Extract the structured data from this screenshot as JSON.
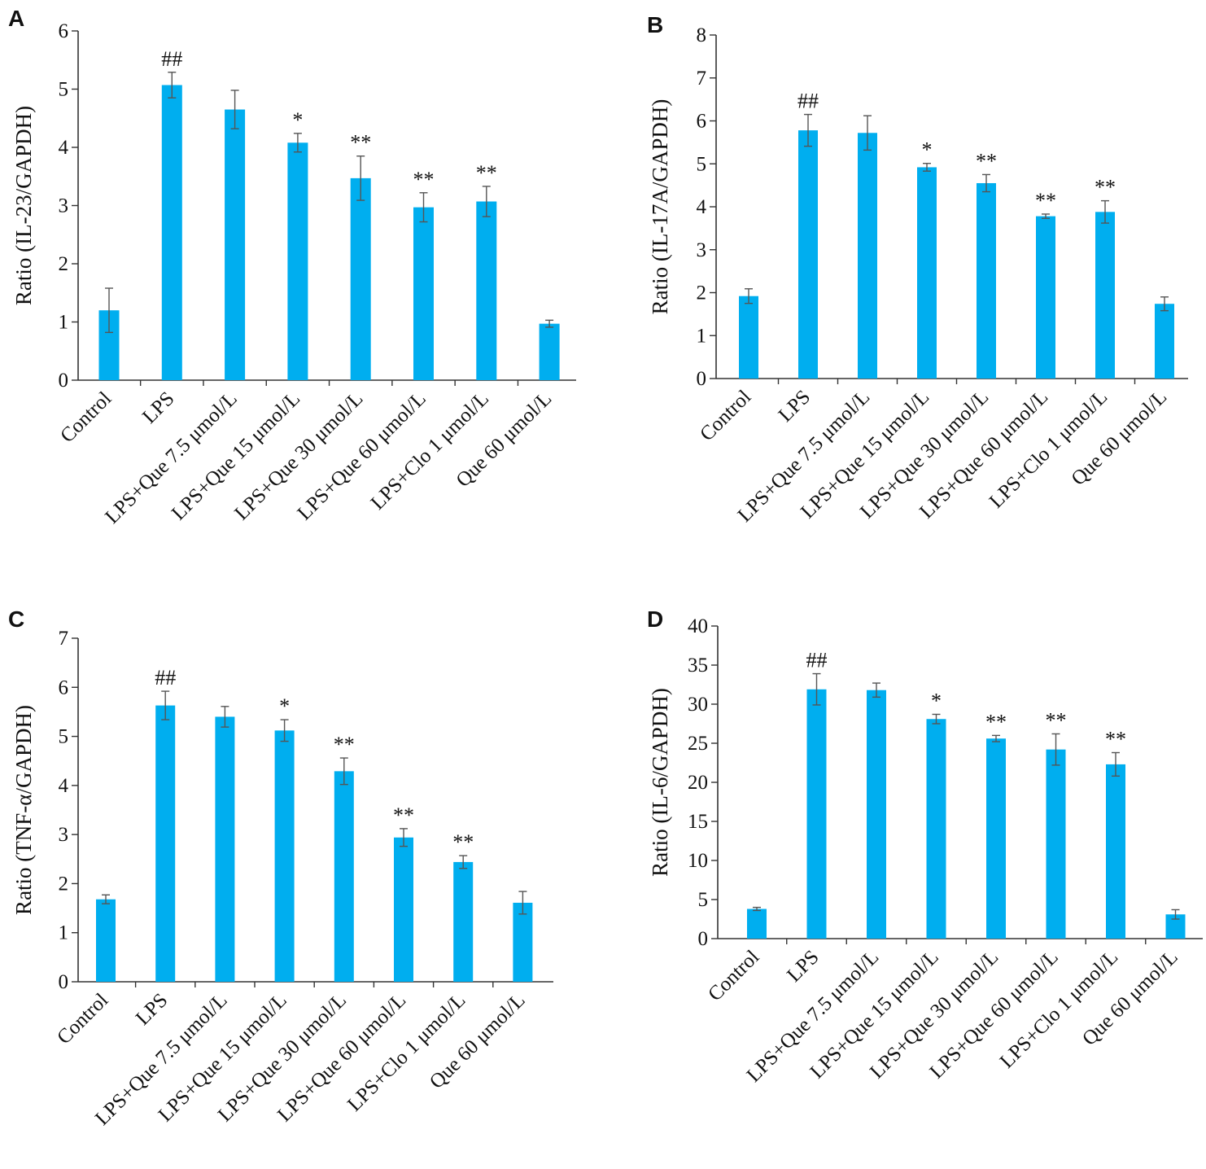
{
  "colors": {
    "bar": "#00AEEF",
    "axis": "#333333",
    "error_bar": "#555555",
    "text": "#111111"
  },
  "chart_data": [
    {
      "type": "bar",
      "panel": "A",
      "ylabel": "Ratio (IL-23/GAPDH)",
      "ylim": [
        0,
        6
      ],
      "yticks": [
        0,
        1,
        2,
        3,
        4,
        5,
        6
      ],
      "categories": [
        "Control",
        "LPS",
        "LPS+Que 7.5 μmol/L",
        "LPS+Que 15 μmol/L",
        "LPS+Que 30 μmol/L",
        "LPS+Que 60 μmol/L",
        "LPS+Clo 1 μmol/L",
        "Que 60 μmol/L"
      ],
      "values": [
        1.2,
        5.07,
        4.65,
        4.08,
        3.47,
        2.97,
        3.07,
        0.97
      ],
      "errors": [
        0.38,
        0.22,
        0.33,
        0.16,
        0.38,
        0.25,
        0.26,
        0.06
      ],
      "significance": [
        "",
        "##",
        "",
        "*",
        "**",
        "**",
        "**",
        ""
      ]
    },
    {
      "type": "bar",
      "panel": "B",
      "ylabel": "Ratio (IL-17A/GAPDH)",
      "ylim": [
        0,
        8
      ],
      "yticks": [
        0,
        1,
        2,
        3,
        4,
        5,
        6,
        7,
        8
      ],
      "categories": [
        "Control",
        "LPS",
        "LPS+Que 7.5 μmol/L",
        "LPS+Que 15 μmol/L",
        "LPS+Que 30 μmol/L",
        "LPS+Que 60 μmol/L",
        "LPS+Clo 1 μmol/L",
        "Que 60 μmol/L"
      ],
      "values": [
        1.92,
        5.78,
        5.72,
        4.92,
        4.55,
        3.78,
        3.88,
        1.74
      ],
      "errors": [
        0.17,
        0.37,
        0.4,
        0.09,
        0.2,
        0.05,
        0.26,
        0.16
      ],
      "significance": [
        "",
        "##",
        "",
        "*",
        "**",
        "**",
        "**",
        ""
      ]
    },
    {
      "type": "bar",
      "panel": "C",
      "ylabel": "Ratio (TNF-α/GAPDH)",
      "ylim": [
        0,
        7
      ],
      "yticks": [
        0,
        1,
        2,
        3,
        4,
        5,
        6,
        7
      ],
      "categories": [
        "Control",
        "LPS",
        "LPS+Que 7.5 μmol/L",
        "LPS+Que 15 μmol/L",
        "LPS+Que 30 μmol/L",
        "LPS+Que 60 μmol/L",
        "LPS+Clo 1 μmol/L",
        "Que 60 μmol/L"
      ],
      "values": [
        1.68,
        5.63,
        5.4,
        5.12,
        4.29,
        2.94,
        2.44,
        1.61
      ],
      "errors": [
        0.09,
        0.29,
        0.21,
        0.22,
        0.27,
        0.18,
        0.13,
        0.23
      ],
      "significance": [
        "",
        "##",
        "",
        "*",
        "**",
        "**",
        "**",
        ""
      ]
    },
    {
      "type": "bar",
      "panel": "D",
      "ylabel": "Ratio (IL-6/GAPDH)",
      "ylim": [
        0,
        40
      ],
      "yticks": [
        0,
        5,
        10,
        15,
        20,
        25,
        30,
        35,
        40
      ],
      "categories": [
        "Control",
        "LPS",
        "LPS+Que 7.5 μmol/L",
        "LPS+Que 15 μmol/L",
        "LPS+Que 30 μmol/L",
        "LPS+Que 60 μmol/L",
        "LPS+Clo 1 μmol/L",
        "Que 60 μmol/L"
      ],
      "values": [
        3.8,
        31.9,
        31.8,
        28.1,
        25.6,
        24.2,
        22.3,
        3.1
      ],
      "errors": [
        0.2,
        2.0,
        0.9,
        0.6,
        0.4,
        2.0,
        1.5,
        0.6
      ],
      "significance": [
        "",
        "##",
        "",
        "*",
        "**",
        "**",
        "**",
        ""
      ]
    }
  ]
}
